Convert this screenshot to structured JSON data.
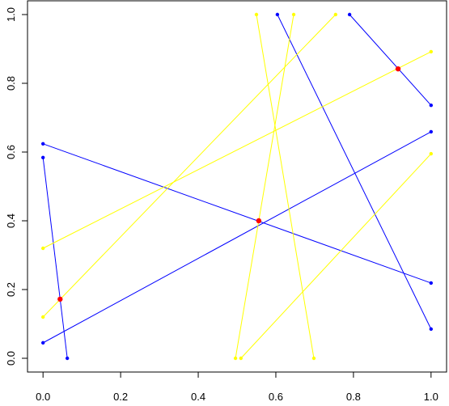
{
  "chart_data": {
    "type": "segments",
    "series": [
      {
        "color": "#0000ff",
        "segments": [
          {
            "x": [
              0,
              1
            ],
            "y": [
              0.624,
              0.219
            ]
          },
          {
            "x": [
              0,
              0.0625
            ],
            "y": [
              0.584,
              0
            ]
          },
          {
            "x": [
              0,
              1
            ],
            "y": [
              0.045,
              0.659
            ]
          },
          {
            "x": [
              0.604,
              1
            ],
            "y": [
              1,
              0.085
            ]
          },
          {
            "x": [
              0.79,
              1
            ],
            "y": [
              1,
              0.736
            ]
          }
        ]
      },
      {
        "color": "#ffff00",
        "segments": [
          {
            "x": [
              0,
              1
            ],
            "y": [
              0.32,
              0.892
            ]
          },
          {
            "x": [
              0,
              0.754
            ],
            "y": [
              0.12,
              1
            ]
          },
          {
            "x": [
              0.55,
              0.698
            ],
            "y": [
              1,
              0
            ]
          },
          {
            "x": [
              0.646,
              0.496
            ],
            "y": [
              1,
              0
            ]
          },
          {
            "x": [
              0.51,
              1
            ],
            "y": [
              0,
              0.595
            ]
          }
        ]
      }
    ],
    "points": {
      "color": "#ff0000",
      "x": [
        0.044,
        0.556,
        0.915
      ],
      "y": [
        0.172,
        0.4,
        0.842
      ]
    },
    "xlim": [
      -0.04,
      1.04
    ],
    "ylim": [
      -0.04,
      1.04
    ],
    "xticks": [
      {
        "value": 0,
        "label": "0.0"
      },
      {
        "value": 0.2,
        "label": "0.2"
      },
      {
        "value": 0.4,
        "label": "0.4"
      },
      {
        "value": 0.6,
        "label": "0.6"
      },
      {
        "value": 0.8,
        "label": "0.8"
      },
      {
        "value": 1,
        "label": "1.0"
      }
    ],
    "yticks": [
      {
        "value": 0,
        "label": "0.0"
      },
      {
        "value": 0.2,
        "label": "0.2"
      },
      {
        "value": 0.4,
        "label": "0.4"
      },
      {
        "value": 0.6,
        "label": "0.6"
      },
      {
        "value": 0.8,
        "label": "0.8"
      },
      {
        "value": 1,
        "label": "1.0"
      }
    ]
  }
}
